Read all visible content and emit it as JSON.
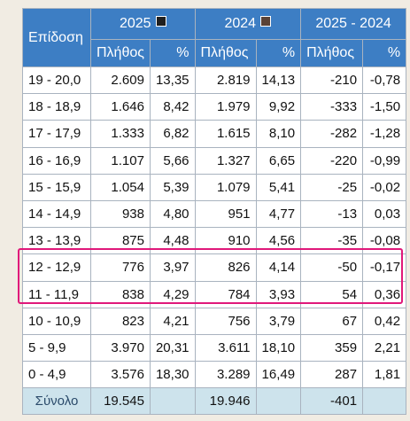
{
  "header": {
    "category": "Επίδοση",
    "year_2025": "2025",
    "year_2024": "2024",
    "diff": "2025 - 2024",
    "count": "Πλήθος",
    "percent": "%",
    "colors": {
      "legend_2025": "#ffffff",
      "legend_2024": "#5a4236",
      "header_bg": "#3d7ec4",
      "highlight": "#e0187a"
    }
  },
  "rows": [
    {
      "range": "19 - 20,0",
      "c25": "2.609",
      "p25": "13,35",
      "c24": "2.819",
      "p24": "14,13",
      "dc": "-210",
      "dp": "-0,78"
    },
    {
      "range": "18 - 18,9",
      "c25": "1.646",
      "p25": "8,42",
      "c24": "1.979",
      "p24": "9,92",
      "dc": "-333",
      "dp": "-1,50"
    },
    {
      "range": "17 - 17,9",
      "c25": "1.333",
      "p25": "6,82",
      "c24": "1.615",
      "p24": "8,10",
      "dc": "-282",
      "dp": "-1,28"
    },
    {
      "range": "16 - 16,9",
      "c25": "1.107",
      "p25": "5,66",
      "c24": "1.327",
      "p24": "6,65",
      "dc": "-220",
      "dp": "-0,99"
    },
    {
      "range": "15 - 15,9",
      "c25": "1.054",
      "p25": "5,39",
      "c24": "1.079",
      "p24": "5,41",
      "dc": "-25",
      "dp": "-0,02"
    },
    {
      "range": "14 - 14,9",
      "c25": "938",
      "p25": "4,80",
      "c24": "951",
      "p24": "4,77",
      "dc": "-13",
      "dp": "0,03"
    },
    {
      "range": "13 - 13,9",
      "c25": "875",
      "p25": "4,48",
      "c24": "910",
      "p24": "4,56",
      "dc": "-35",
      "dp": "-0,08"
    },
    {
      "range": "12 - 12,9",
      "c25": "776",
      "p25": "3,97",
      "c24": "826",
      "p24": "4,14",
      "dc": "-50",
      "dp": "-0,17"
    },
    {
      "range": "11 - 11,9",
      "c25": "838",
      "p25": "4,29",
      "c24": "784",
      "p24": "3,93",
      "dc": "54",
      "dp": "0,36"
    },
    {
      "range": "10 - 10,9",
      "c25": "823",
      "p25": "4,21",
      "c24": "756",
      "p24": "3,79",
      "dc": "67",
      "dp": "0,42"
    },
    {
      "range": "5 - 9,9",
      "c25": "3.970",
      "p25": "20,31",
      "c24": "3.611",
      "p24": "18,10",
      "dc": "359",
      "dp": "2,21"
    },
    {
      "range": "0 - 4,9",
      "c25": "3.576",
      "p25": "18,30",
      "c24": "3.289",
      "p24": "16,49",
      "dc": "287",
      "dp": "1,81"
    }
  ],
  "total": {
    "label": "Σύνολο",
    "c25": "19.545",
    "c24": "19.946",
    "dc": "-401"
  }
}
